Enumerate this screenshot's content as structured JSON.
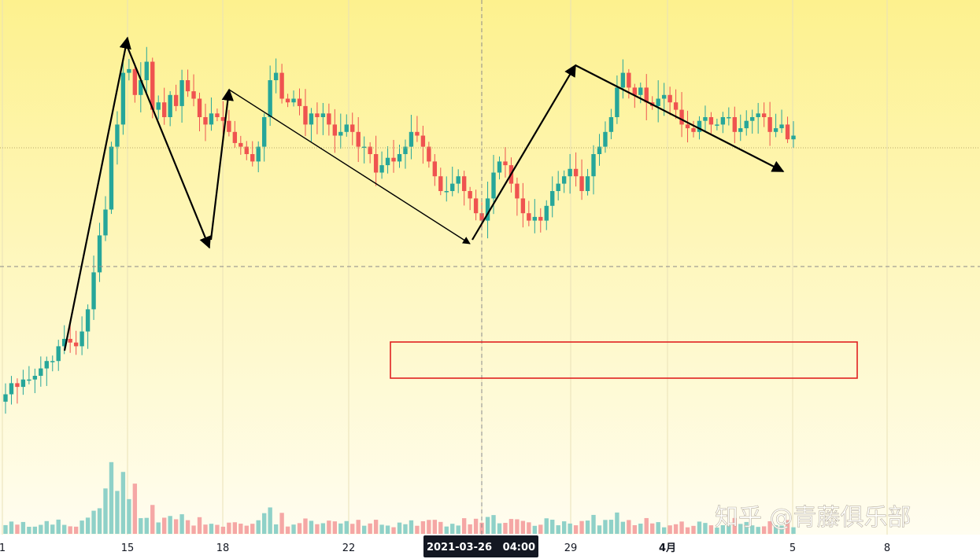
{
  "chart_data": {
    "type": "candlestick",
    "x_tick_labels": [
      "1",
      "15",
      "18",
      "22",
      "29",
      "4月",
      "5",
      "8"
    ],
    "crosshair_label": "2021-03-26   04:00",
    "colors": {
      "up": "#26a69a",
      "down": "#ef5350",
      "up_volume": "#8fd1c8",
      "down_volume": "#f5a7a5",
      "background_top": "#fdf18e",
      "background_bottom": "#fffdf0",
      "annotation_box": "#e02020",
      "trend_arrows": "#000000"
    },
    "grid": true,
    "notes": "Price and volume candles without a printed price axis; values are relative (0-100 scale) read from candle positions.",
    "price_path": [
      5,
      8,
      7,
      9,
      9,
      10,
      12,
      14,
      14,
      18,
      20,
      19,
      18,
      22,
      28,
      38,
      48,
      55,
      72,
      78,
      92,
      93,
      86,
      90,
      95,
      82,
      84,
      80,
      86,
      83,
      90,
      87,
      85,
      80,
      78,
      81,
      80,
      79,
      76,
      73,
      72,
      70,
      68,
      72,
      80,
      90,
      92,
      85,
      84,
      85,
      83,
      78,
      81,
      80,
      81,
      78,
      75,
      76,
      78,
      76,
      72,
      72,
      70,
      65,
      67,
      69,
      68,
      70,
      72,
      76,
      75,
      72,
      68,
      64,
      60,
      60,
      62,
      64,
      60,
      58,
      54,
      52,
      58,
      65,
      68,
      67,
      62,
      58,
      54,
      52,
      53,
      52,
      56,
      60,
      62,
      64,
      66,
      64,
      60,
      64,
      70,
      72,
      76,
      80,
      88,
      92,
      88,
      86,
      88,
      84,
      83,
      85,
      86,
      84,
      82,
      78,
      77,
      76,
      79,
      80,
      78,
      78,
      80,
      80,
      76,
      77,
      79,
      80,
      81,
      80,
      76,
      77,
      78,
      74,
      75
    ]
  },
  "watermark": {
    "text": "知乎 @青藤俱乐部"
  }
}
